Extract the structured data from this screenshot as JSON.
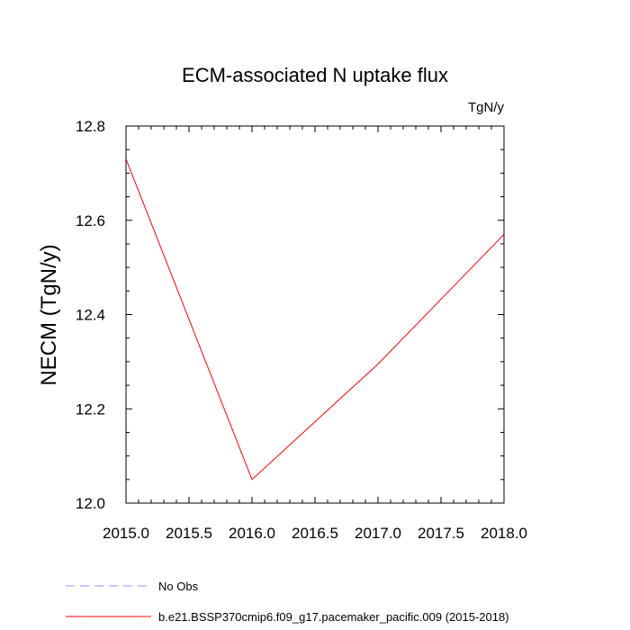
{
  "chart_data": {
    "type": "line",
    "title": "ECM-associated N uptake flux",
    "units_label": "TgN/y",
    "ylabel": "NECM  (TgN/y)",
    "xlabel": "",
    "xlim": [
      2015.0,
      2018.0
    ],
    "ylim": [
      12.0,
      12.8
    ],
    "x_ticks": [
      "2015.0",
      "2015.5",
      "2016.0",
      "2016.5",
      "2017.0",
      "2017.5",
      "2018.0"
    ],
    "y_ticks": [
      "12.0",
      "12.2",
      "12.4",
      "12.6",
      "12.8"
    ],
    "grid": false,
    "series": [
      {
        "name": "b.e21.BSSP370cmip6.f09_g17.pacemaker_pacific.009 (2015-2018)",
        "color": "#ff0000",
        "style": "solid",
        "x": [
          2015,
          2016,
          2017,
          2018
        ],
        "y": [
          12.73,
          12.05,
          12.295,
          12.57
        ]
      }
    ],
    "legend": {
      "placement": "bottom-left",
      "entries": [
        {
          "label": "No Obs",
          "color": "#8c8cff",
          "style": "dashed"
        },
        {
          "label": "b.e21.BSSP370cmip6.f09_g17.pacemaker_pacific.009 (2015-2018)",
          "color": "#ff0000",
          "style": "solid"
        }
      ]
    }
  }
}
